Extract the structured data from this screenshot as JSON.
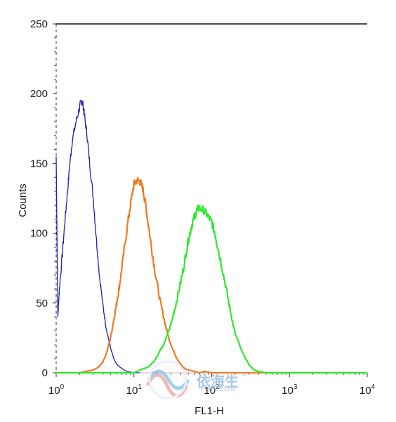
{
  "chart_data": {
    "type": "line",
    "title": "",
    "xlabel": "FL1-H",
    "ylabel": "Counts",
    "xscale": "log",
    "xlim": [
      1,
      10000
    ],
    "ylim": [
      0,
      250
    ],
    "x_ticks": [
      {
        "value": 1,
        "base": "10",
        "exp": "0"
      },
      {
        "value": 10,
        "base": "10",
        "exp": "1"
      },
      {
        "value": 100,
        "base": "10",
        "exp": "2"
      },
      {
        "value": 1000,
        "base": "10",
        "exp": "3"
      },
      {
        "value": 10000,
        "base": "10",
        "exp": "4"
      }
    ],
    "y_ticks": [
      "0",
      "50",
      "100",
      "150",
      "200",
      "250"
    ],
    "grid": false,
    "series": [
      {
        "color": "#1f1fb0",
        "x": [
          1.0,
          1.05,
          1.1,
          1.2,
          1.3,
          1.4,
          1.5,
          1.6,
          1.8,
          2.0,
          2.1,
          2.2,
          2.3,
          2.5,
          2.7,
          3.0,
          3.3,
          3.6,
          4.0,
          4.4,
          5.0,
          5.5,
          6.0,
          7.0,
          8.0,
          10.0,
          12.0
        ],
        "y": [
          155,
          40,
          60,
          85,
          110,
          130,
          150,
          165,
          180,
          190,
          195,
          193,
          185,
          170,
          150,
          125,
          95,
          70,
          48,
          32,
          18,
          10,
          6,
          3,
          1,
          0,
          0
        ]
      },
      {
        "color": "#f07a22",
        "x": [
          1.0,
          2.0,
          3.0,
          3.5,
          4.0,
          4.5,
          5.0,
          5.5,
          6.0,
          6.5,
          7.0,
          8.0,
          9.0,
          10.0,
          11.0,
          12.0,
          13.0,
          14.0,
          15.0,
          17.0,
          19.0,
          22.0,
          25.0,
          28.0,
          32.0,
          36.0,
          40.0,
          45.0,
          50.0,
          60.0,
          70.0,
          80.0,
          100.0,
          1000.0,
          10000.0
        ],
        "y": [
          0,
          0,
          2,
          4,
          8,
          15,
          25,
          38,
          50,
          62,
          75,
          100,
          120,
          135,
          138,
          137,
          132,
          122,
          110,
          88,
          70,
          50,
          36,
          25,
          16,
          10,
          6,
          3,
          2,
          1,
          0,
          1,
          0,
          0,
          0
        ]
      },
      {
        "color": "#2ee82e",
        "x": [
          1.0,
          5.0,
          10.0,
          12.0,
          15.0,
          18.0,
          20.0,
          25.0,
          30.0,
          35.0,
          40.0,
          45.0,
          50.0,
          55.0,
          60.0,
          65.0,
          70.0,
          80.0,
          90.0,
          100.0,
          110.0,
          120.0,
          140.0,
          160.0,
          180.0,
          200.0,
          250.0,
          300.0,
          350.0,
          400.0,
          500.0,
          1000.0,
          10000.0
        ],
        "y": [
          0,
          0,
          0,
          2,
          4,
          8,
          12,
          22,
          35,
          50,
          65,
          80,
          95,
          105,
          112,
          117,
          118,
          116,
          112,
          108,
          100,
          90,
          72,
          55,
          40,
          28,
          14,
          6,
          2,
          1,
          0,
          0,
          0
        ]
      }
    ]
  },
  "watermark": {
    "brand_cn": "依海生",
    "brand_en": "YIHESON",
    "tm": "TM"
  }
}
